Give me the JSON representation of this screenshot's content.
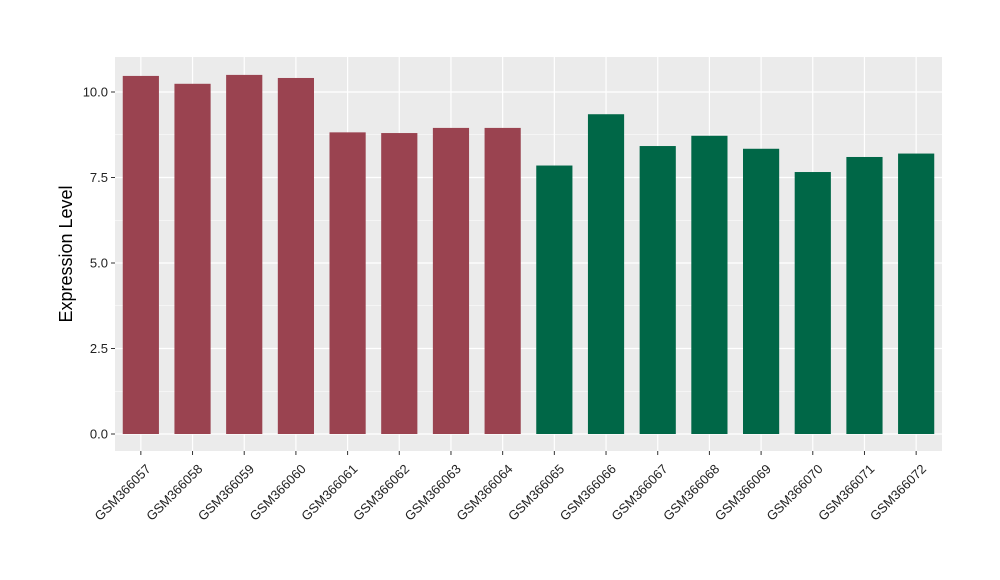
{
  "chart_data": {
    "type": "bar",
    "title": "",
    "xlabel": "",
    "ylabel": "Expression Level",
    "ylim": [
      0,
      10.9
    ],
    "yticks": [
      0.0,
      2.5,
      5.0,
      7.5,
      10.0
    ],
    "ytick_labels": [
      "0.0",
      "2.5",
      "5.0",
      "7.5",
      "10.0"
    ],
    "grid": true,
    "legend": "none",
    "categories": [
      "GSM366057",
      "GSM366058",
      "GSM366059",
      "GSM366060",
      "GSM366061",
      "GSM366062",
      "GSM366063",
      "GSM366064",
      "GSM366065",
      "GSM366066",
      "GSM366067",
      "GSM366068",
      "GSM366069",
      "GSM366070",
      "GSM366071",
      "GSM366072"
    ],
    "values": [
      10.47,
      10.24,
      10.5,
      10.41,
      8.82,
      8.8,
      8.95,
      8.95,
      7.85,
      9.35,
      8.42,
      8.72,
      8.34,
      7.66,
      8.1,
      8.2
    ],
    "bar_colors": [
      "#9A4350",
      "#9A4350",
      "#9A4350",
      "#9A4350",
      "#9A4350",
      "#9A4350",
      "#9A4350",
      "#9A4350",
      "#006747",
      "#006747",
      "#006747",
      "#006747",
      "#006747",
      "#006747",
      "#006747",
      "#006747"
    ],
    "panel_background": "#EBEBEB",
    "grid_color": "#FFFFFF"
  }
}
